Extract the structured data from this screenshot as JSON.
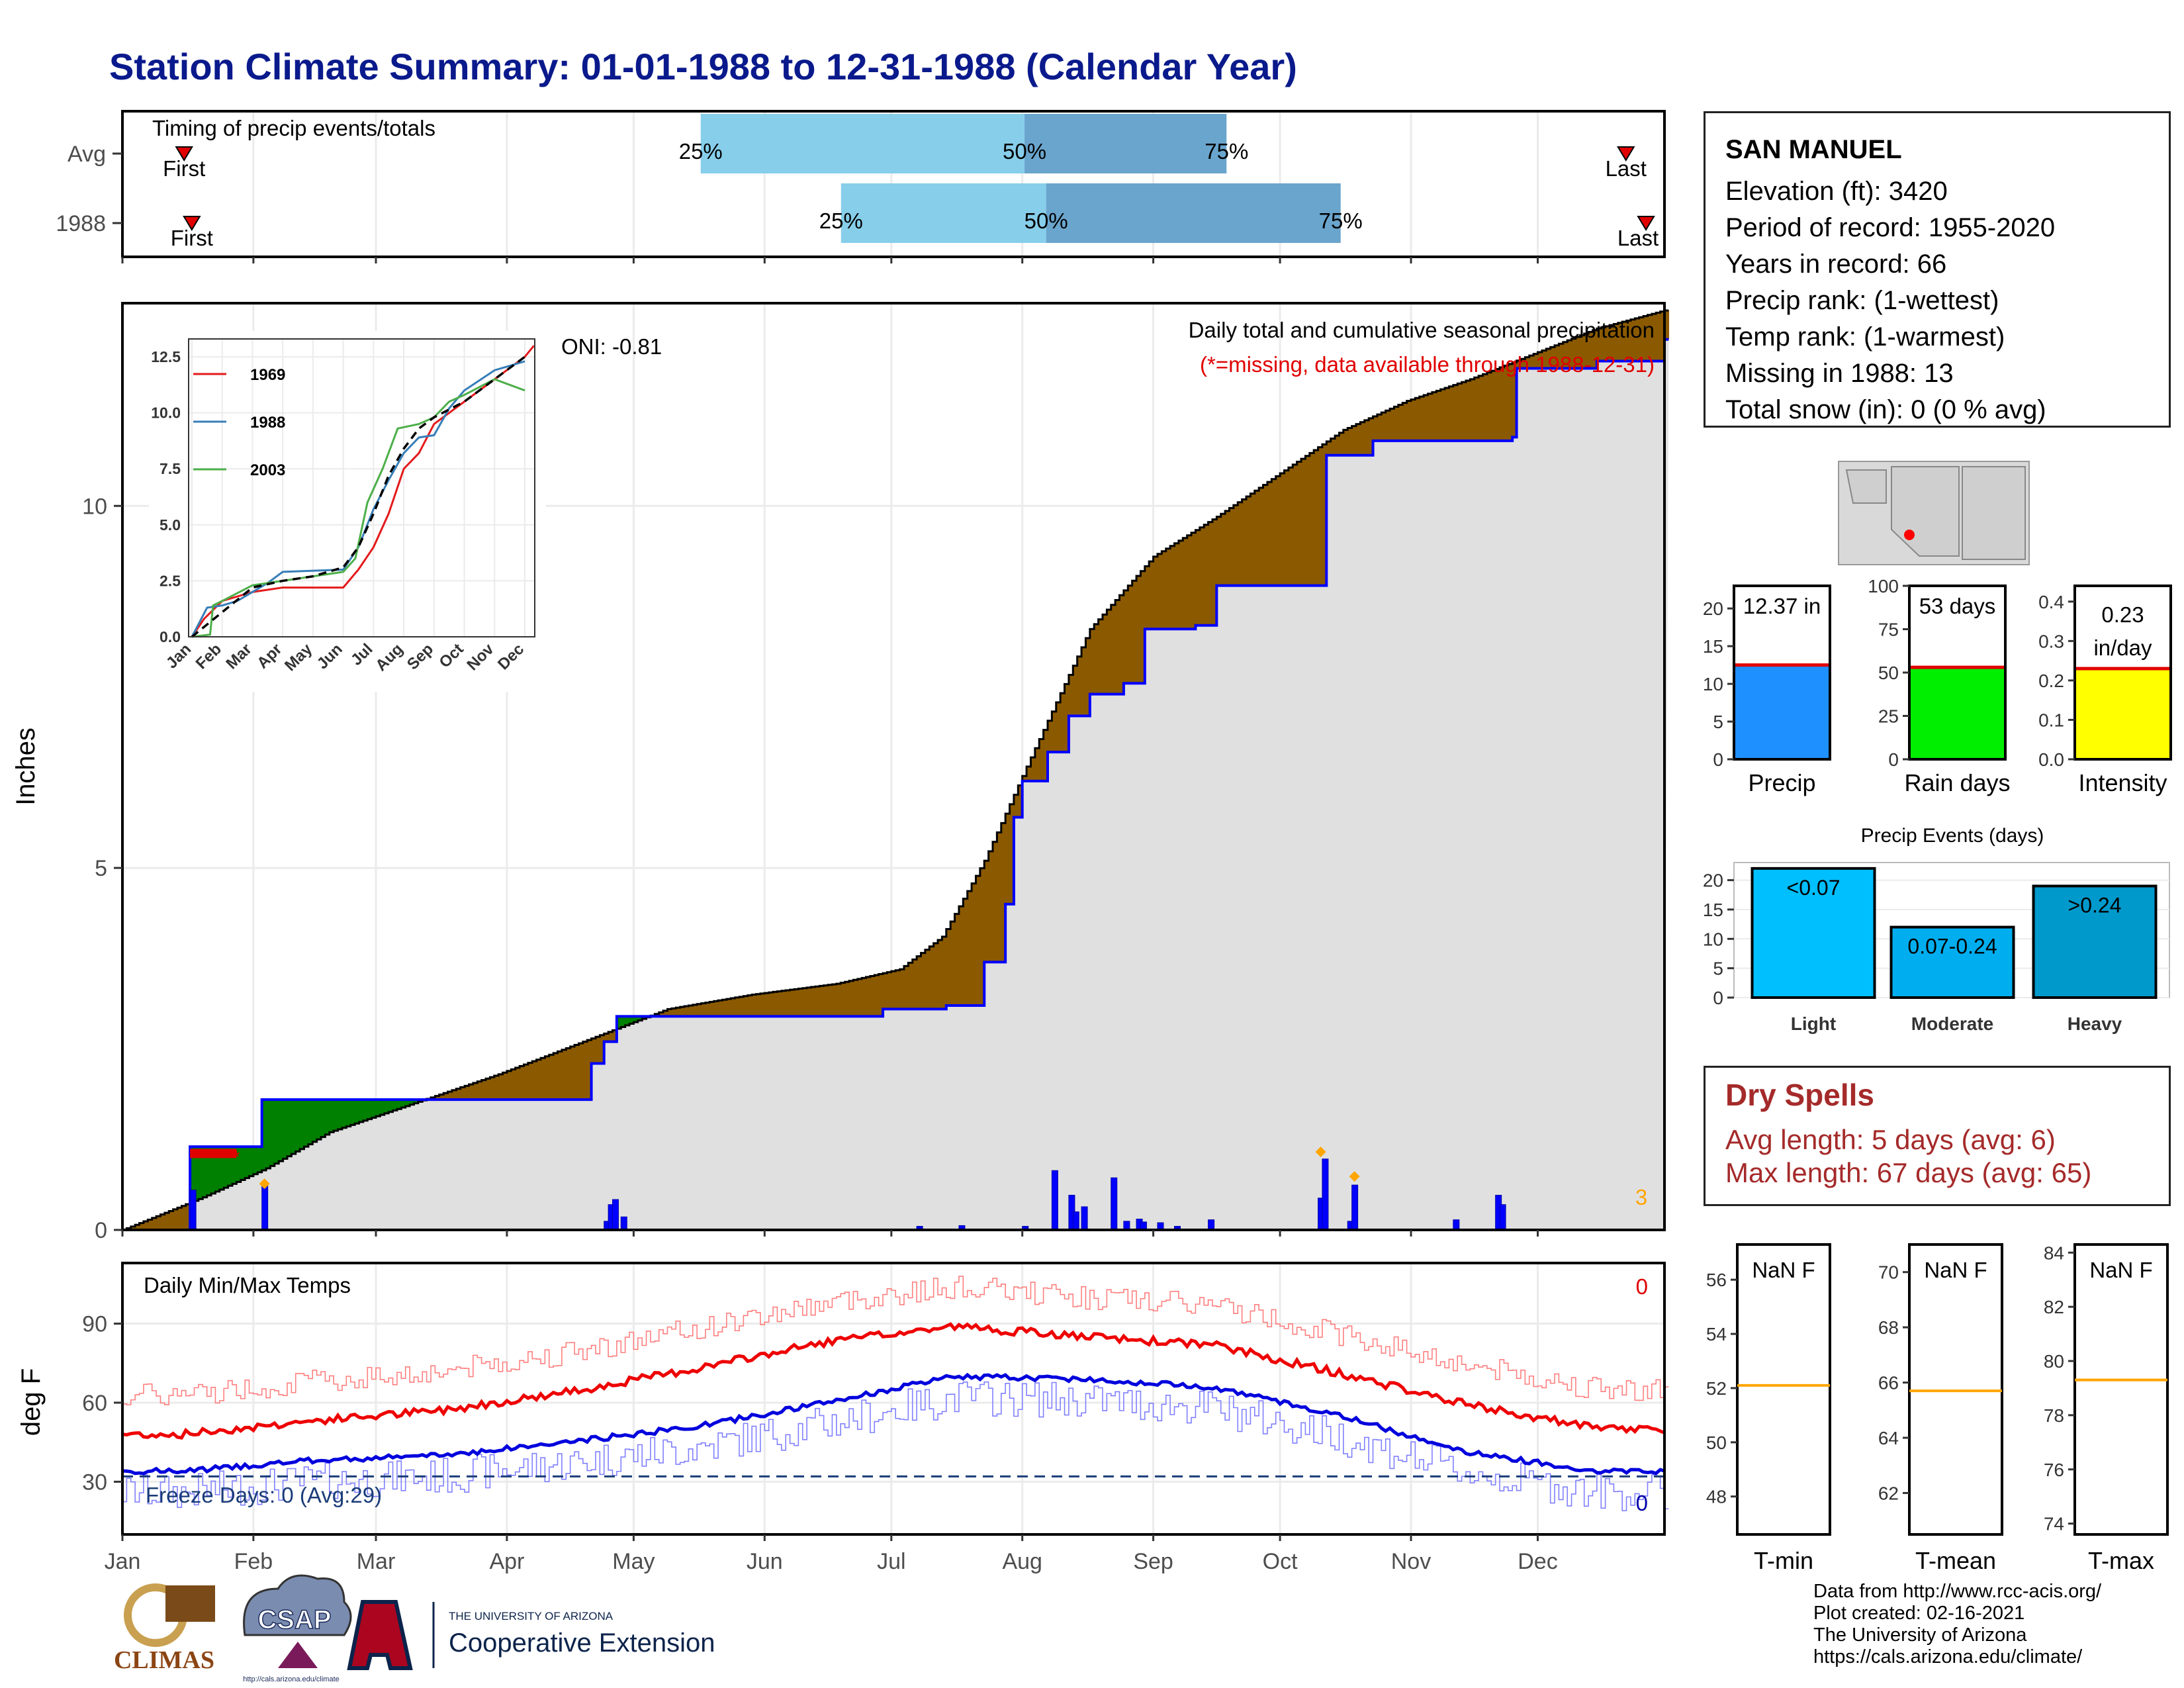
{
  "title": "Station Climate Summary: 01-01-1988 to 12-31-1988 (Calendar Year)",
  "timing": {
    "panel_title": "Timing of precip events/totals",
    "rows": [
      {
        "label": "Avg",
        "p25": 0.375,
        "p50": 0.585,
        "p75": 0.716,
        "first_label": "First",
        "last_label": "Last",
        "first": 0.04,
        "last": 0.975
      },
      {
        "label": "1988",
        "p25": 0.466,
        "p50": 0.599,
        "p75": 0.79,
        "first_label": "First",
        "last_label": "Last",
        "first": 0.045,
        "last": 0.988
      }
    ],
    "pct_labels": [
      "25%",
      "50%",
      "75%"
    ]
  },
  "precip_panel": {
    "ylabel": "Inches",
    "yticks": [
      "0",
      "5",
      "10"
    ],
    "header": "Daily total and cumulative seasonal precipitation",
    "missing_note": "(*=missing, data available through 1988-12-31)",
    "oni": "ONI: -0.81",
    "missing_count": "3",
    "colors": {
      "avg_fill": "#8b5a00",
      "above_fill": "#008000",
      "base_fill": "#e0e0e0",
      "actual_line": "#0000ff"
    }
  },
  "inset": {
    "yticks": [
      "0.0",
      "2.5",
      "5.0",
      "7.5",
      "10.0",
      "12.5"
    ],
    "months": [
      "Jan",
      "Feb",
      "Mar",
      "Apr",
      "May",
      "Jun",
      "Jul",
      "Aug",
      "Sep",
      "Oct",
      "Nov",
      "Dec"
    ],
    "legend": [
      {
        "name": "1969",
        "color": "#e41a1c"
      },
      {
        "name": "1988",
        "color": "#377eb8"
      },
      {
        "name": "2003",
        "color": "#4daf4a"
      }
    ]
  },
  "temp_panel": {
    "ylabel": "deg F",
    "title": "Daily Min/Max Temps",
    "yticks": [
      "30",
      "60",
      "90"
    ],
    "freeze_text": "Freeze Days: 0 (Avg:29)",
    "max_missing": "0",
    "min_missing": "0"
  },
  "x_months": [
    "Jan",
    "Feb",
    "Mar",
    "Apr",
    "May",
    "Jun",
    "Jul",
    "Aug",
    "Sep",
    "Oct",
    "Nov",
    "Dec"
  ],
  "station": {
    "name": "SAN MANUEL",
    "lines": [
      "Elevation (ft): 3420",
      "Period of record: 1955-2020",
      "Years in record: 66",
      "Precip rank:  (1-wettest)",
      "Temp rank:  (1-warmest)",
      "Missing in 1988: 13",
      "Total snow (in): 0 (0 % avg)"
    ]
  },
  "small_bars": [
    {
      "label": "Precip",
      "value_text": "12.37 in",
      "value": 12.37,
      "avg": 12.5,
      "ymax": 23,
      "yticks": [
        "0",
        "5",
        "10",
        "15",
        "20"
      ],
      "tickvals": [
        0,
        5,
        10,
        15,
        20
      ],
      "color": "#1e90ff"
    },
    {
      "label": "Rain days",
      "value_text": "53 days",
      "value": 53,
      "avg": 53,
      "ymax": 100,
      "yticks": [
        "0",
        "25",
        "50",
        "75",
        "100"
      ],
      "tickvals": [
        0,
        25,
        50,
        75,
        100
      ],
      "color": "#00ee00"
    },
    {
      "label": "Intensity",
      "value_text": "0.23 in/day",
      "value": 0.23,
      "avg": 0.23,
      "ymax": 0.44,
      "yticks": [
        "0.0",
        "0.1",
        "0.2",
        "0.3",
        "0.4"
      ],
      "tickvals": [
        0,
        0.1,
        0.2,
        0.3,
        0.4
      ],
      "color": "#ffff00"
    }
  ],
  "events": {
    "title": "Precip Events (days)",
    "yticks": [
      "0",
      "5",
      "10",
      "15",
      "20"
    ],
    "bars": [
      {
        "category": "Light",
        "label": "<0.07",
        "value": 22,
        "color": "#00bfff"
      },
      {
        "category": "Moderate",
        "label": "0.07-0.24",
        "value": 12,
        "color": "#00aeef"
      },
      {
        "category": "Heavy",
        "label": ">0.24",
        "value": 19,
        "color": "#0099cc"
      }
    ]
  },
  "dry_spells": {
    "title": "Dry Spells",
    "avg": "Avg length: 5 days (avg: 6)",
    "max": "Max length: 67 days (avg: 65)"
  },
  "temp_gauges": [
    {
      "label": "T-min",
      "value_text": "NaN F",
      "yticks": [
        "48",
        "50",
        "52",
        "54",
        "56"
      ],
      "tickvals": [
        48,
        50,
        52,
        54,
        56
      ],
      "ymin": 46.6,
      "ymax": 57.3,
      "avg": 52.1
    },
    {
      "label": "T-mean",
      "value_text": "NaN F",
      "yticks": [
        "62",
        "64",
        "66",
        "68",
        "70"
      ],
      "tickvals": [
        62,
        64,
        66,
        68,
        70
      ],
      "ymin": 60.5,
      "ymax": 71.0,
      "avg": 65.7
    },
    {
      "label": "T-max",
      "value_text": "NaN F",
      "yticks": [
        "74",
        "76",
        "78",
        "80",
        "82",
        "84"
      ],
      "tickvals": [
        74,
        76,
        78,
        80,
        82,
        84
      ],
      "ymin": 73.6,
      "ymax": 84.3,
      "avg": 79.3
    }
  ],
  "credits": [
    "Data from http://www.rcc-acis.org/",
    "Plot created: 02-16-2021",
    "The University of Arizona",
    "https://cals.arizona.edu/climate/"
  ],
  "logos": {
    "climas": "CLIMAS",
    "csap": "CSAP",
    "csap_url": "http://cals.arizona.edu/climate",
    "ua_line1": "THE UNIVERSITY OF ARIZONA",
    "ua_line2": "Cooperative Extension"
  },
  "chart_data": [
    {
      "type": "area",
      "title": "Daily total and cumulative seasonal precipitation",
      "ylabel": "Inches",
      "ylim": [
        0,
        12.8
      ],
      "x_unit": "day of year 1988",
      "series": [
        {
          "name": "",
          "points": [
            [
              1,
              0
            ],
            [
              20,
              0.45
            ],
            [
              35,
              0.85
            ],
            [
              50,
              1.35
            ],
            [
              70,
              1.75
            ],
            [
              90,
              2.15
            ],
            [
              110,
              2.6
            ],
            [
              130,
              3.05
            ],
            [
              150,
              3.25
            ],
            [
              170,
              3.4
            ],
            [
              185,
              3.6
            ],
            [
              195,
              4.05
            ],
            [
              205,
              5.1
            ],
            [
              215,
              6.4
            ],
            [
              230,
              8.3
            ],
            [
              245,
              9.3
            ],
            [
              260,
              9.85
            ],
            [
              275,
              10.45
            ],
            [
              290,
              11.05
            ],
            [
              305,
              11.45
            ],
            [
              320,
              11.75
            ],
            [
              335,
              12.1
            ],
            [
              350,
              12.45
            ],
            [
              366,
              12.7
            ]
          ]
        },
        {
          "name": "",
          "points": [
            [
              1,
              0
            ],
            [
              16,
              0
            ],
            [
              17,
              1.15
            ],
            [
              33,
              1.15
            ],
            [
              34,
              1.8
            ],
            [
              50,
              1.8
            ],
            [
              110,
              1.8
            ],
            [
              112,
              2.3
            ],
            [
              115,
              2.6
            ],
            [
              118,
              2.95
            ],
            [
              180,
              2.95
            ],
            [
              181,
              3.05
            ],
            [
              195,
              3.05
            ],
            [
              196,
              3.1
            ],
            [
              202,
              3.1
            ],
            [
              205,
              3.7
            ],
            [
              210,
              4.5
            ],
            [
              212,
              5.7
            ],
            [
              214,
              6.2
            ],
            [
              220,
              6.6
            ],
            [
              225,
              7.1
            ],
            [
              230,
              7.4
            ],
            [
              238,
              7.55
            ],
            [
              243,
              8.3
            ],
            [
              255,
              8.35
            ],
            [
              260,
              8.9
            ],
            [
              284,
              8.9
            ],
            [
              286,
              10.7
            ],
            [
              297,
              10.9
            ],
            [
              330,
              10.95
            ],
            [
              331,
              11.9
            ],
            [
              350,
              12.0
            ],
            [
              366,
              12.3
            ]
          ]
        }
      ],
      "daily_bars_days": [
        17,
        34,
        115,
        116,
        117,
        119,
        189,
        199,
        214,
        221,
        225,
        226,
        228,
        235,
        238,
        241,
        242,
        246,
        250,
        258,
        284,
        285,
        291,
        292,
        316,
        326,
        327
      ]
    },
    {
      "type": "line",
      "title": "Daily Min/Max Temps",
      "ylabel": "deg F",
      "ylim": [
        10,
        113
      ],
      "series": [
        {
          "name": "",
          "approx_by_month": [
            58,
            63,
            67,
            74,
            83,
            93,
            99,
            95,
            92,
            81,
            69,
            60
          ]
        },
        {
          "name": "",
          "approx_by_month": [
            34,
            38,
            40,
            45,
            51,
            60,
            70,
            69,
            66,
            55,
            41,
            34
          ]
        }
      ]
    },
    {
      "type": "bar",
      "title": "Precip Events (days)",
      "categories": [
        "Light",
        "Moderate",
        "Heavy"
      ],
      "values": [
        22,
        12,
        19
      ]
    }
  ]
}
